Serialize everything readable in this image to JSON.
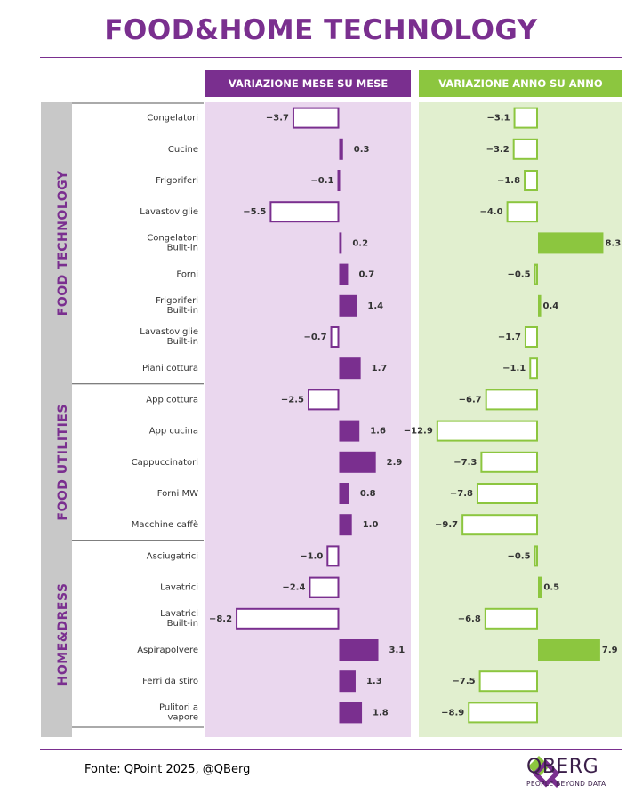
{
  "title": "FOOD&HOME TECHNOLOGY",
  "footer": {
    "source": "Fonte: QPoint 2025, @QBerg",
    "logo_name": "QBERG",
    "logo_tagline": "PEOPLE BEYOND DATA"
  },
  "colors": {
    "purple": "#7a2f8f",
    "green": "#8cc63f",
    "purple_bg": "#ead7ee",
    "green_bg": "#e1efcf",
    "label_bg": "#c8c8c8"
  },
  "chart_data": {
    "type": "bar",
    "orientation": "horizontal",
    "panels": [
      {
        "name": "VARIAZIONE MESE SU MESE",
        "color": "#7a2f8f"
      },
      {
        "name": "VARIAZIONE ANNO SU ANNO",
        "color": "#8cc63f"
      }
    ],
    "groups": [
      {
        "name": "FOOD TECHNOLOGY",
        "categories": [
          "Congelatori",
          "Cucine",
          "Frigoriferi",
          "Lavastoviglie",
          "Congelatori Built-in",
          "Forni",
          "Frigoriferi Built-in",
          "Lavastoviglie Built-in",
          "Piani cottura"
        ],
        "mom": [
          -3.7,
          0.3,
          -0.1,
          -5.5,
          0.2,
          0.7,
          1.4,
          -0.7,
          1.7
        ],
        "mom_labels": [
          "-3.7",
          "0.3",
          "-0.1",
          "-5.5",
          "0.2",
          "0.7",
          "1.4",
          "-0.7",
          "1.7"
        ],
        "yoy": [
          -3.1,
          -3.2,
          -1.8,
          -4.0,
          8.3,
          -0.5,
          0.4,
          -1.7,
          -1.1
        ],
        "yoy_labels": [
          "-3.1",
          "-3.2",
          "-1.8",
          "-4.0",
          "8.3",
          "-0.5",
          "0.4",
          "-1.7",
          "-1.1"
        ]
      },
      {
        "name": "FOOD UTILITIES",
        "categories": [
          "App cottura",
          "App cucina",
          "Cappuccinatori",
          "Forni MW",
          "Macchine caffè"
        ],
        "mom": [
          -2.5,
          1.6,
          2.9,
          0.8,
          1.0
        ],
        "mom_labels": [
          "-2.5",
          "1.6",
          "2.9",
          "0.8",
          "1.0"
        ],
        "yoy": [
          -6.7,
          -12.9,
          -7.3,
          -7.8,
          -9.7
        ],
        "yoy_labels": [
          "-6.7",
          "-12.9",
          "-7.3",
          "-7.8",
          "-9.7"
        ]
      },
      {
        "name": "HOME&DRESS",
        "categories": [
          "Asciugatrici",
          "Lavatrici",
          "Lavatrici Built-in",
          "Aspirapolvere",
          "Ferri da stiro",
          "Pulitori a vapore"
        ],
        "mom": [
          -1.0,
          -2.4,
          -8.2,
          3.1,
          1.3,
          1.8
        ],
        "mom_labels": [
          "-1.0",
          "-2.4",
          "-8.2",
          "3.1",
          "1.3",
          "1.8"
        ],
        "yoy": [
          -0.5,
          0.5,
          -6.8,
          7.9,
          -7.5,
          -8.9
        ],
        "yoy_labels": [
          "-0.5",
          "0.5",
          "-6.8",
          "7.9",
          "-7.5",
          "-8.9"
        ]
      }
    ]
  }
}
